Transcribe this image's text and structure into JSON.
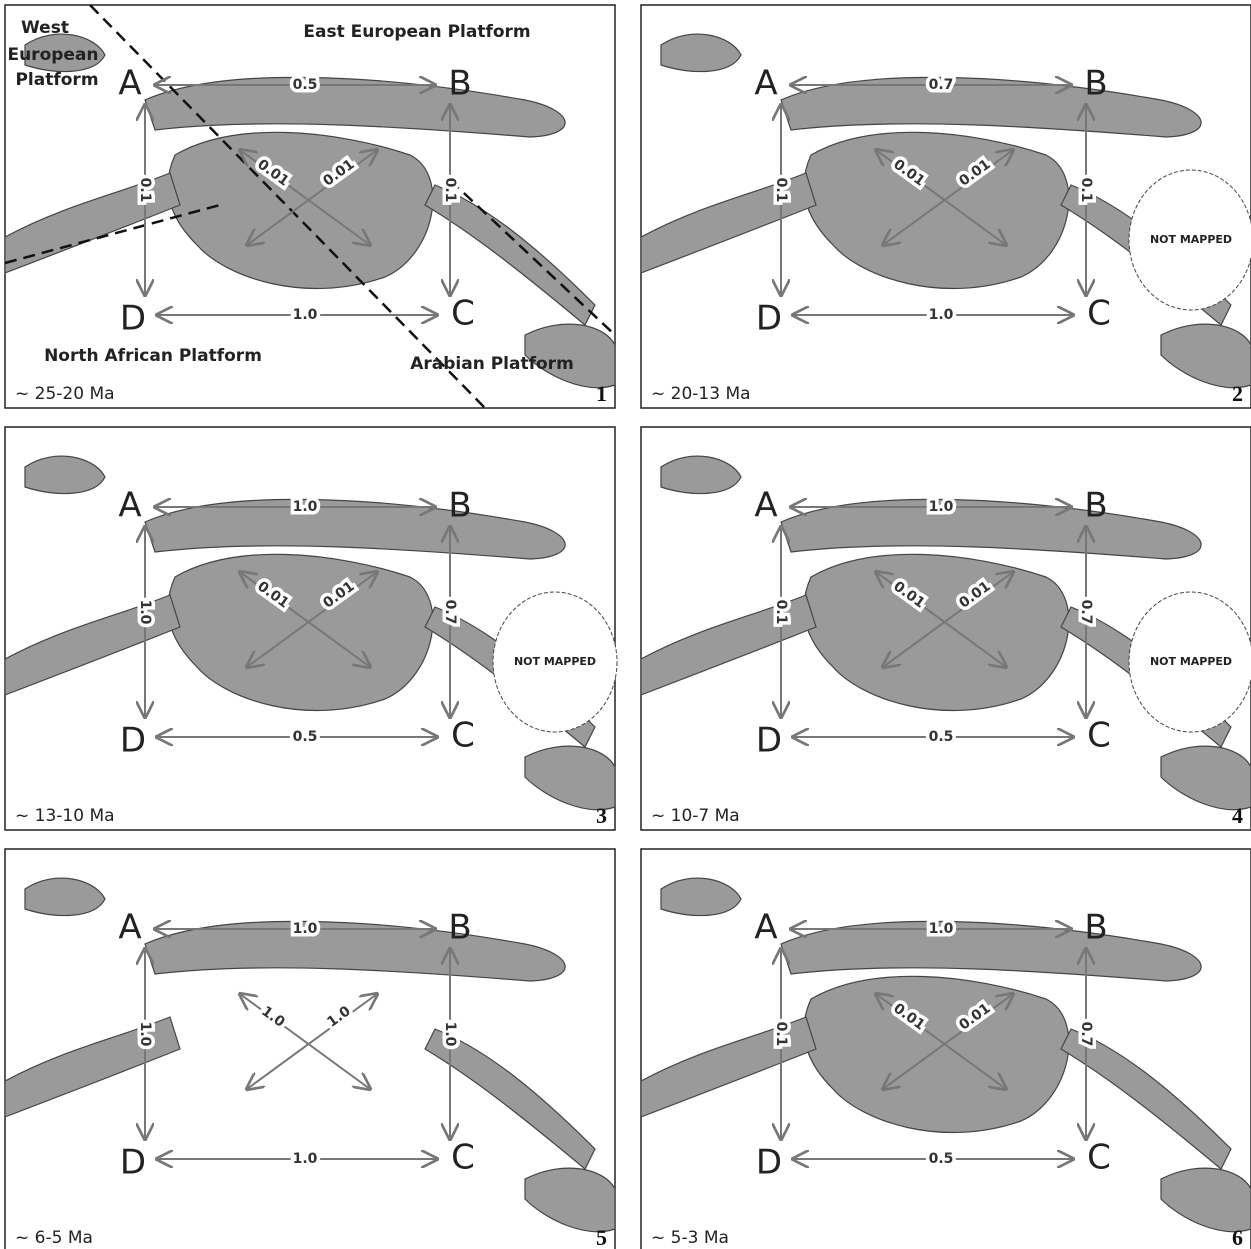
{
  "panels": [
    {
      "period": "~ 25-20 Ma",
      "number": "1",
      "nodes": [
        "A",
        "B",
        "C",
        "D"
      ],
      "edges": {
        "ab": "0.5",
        "ad": "0.1",
        "bc": "0.1",
        "dc": "1.0",
        "diag_1": "0.01",
        "diag_2": "0.01"
      },
      "regions": {
        "west": [
          "West",
          "European",
          "Platform"
        ],
        "east": "East European Platform",
        "north_africa": "North African Platform",
        "arabia": "Arabian Platform"
      }
    },
    {
      "period": "~ 20-13 Ma",
      "number": "2",
      "nodes": [
        "A",
        "B",
        "C",
        "D"
      ],
      "edges": {
        "ab": "0.7",
        "ad": "0.1",
        "bc": "0.1",
        "dc": "1.0",
        "diag_1": "0.01",
        "diag_2": "0.01"
      },
      "not_mapped": "NOT MAPPED"
    },
    {
      "period": "~ 13-10 Ma",
      "number": "3",
      "nodes": [
        "A",
        "B",
        "C",
        "D"
      ],
      "edges": {
        "ab": "1.0",
        "ad": "1.0",
        "bc": "0.7",
        "dc": "0.5",
        "diag_1": "0.01",
        "diag_2": "0.01"
      },
      "not_mapped": "NOT MAPPED"
    },
    {
      "period": "~ 10-7 Ma",
      "number": "4",
      "nodes": [
        "A",
        "B",
        "C",
        "D"
      ],
      "edges": {
        "ab": "1.0",
        "ad": "0.1",
        "bc": "0.7",
        "dc": "0.5",
        "diag_1": "0.01",
        "diag_2": "0.01"
      },
      "not_mapped": "NOT MAPPED"
    },
    {
      "period": "~ 6-5 Ma",
      "number": "5",
      "nodes": [
        "A",
        "B",
        "C",
        "D"
      ],
      "edges": {
        "ab": "1.0",
        "ad": "1.0",
        "bc": "1.0",
        "dc": "1.0",
        "diag_1": "1.0",
        "diag_2": "1.0"
      }
    },
    {
      "period": "~ 5-3 Ma",
      "number": "6",
      "nodes": [
        "A",
        "B",
        "C",
        "D"
      ],
      "edges": {
        "ab": "1.0",
        "ad": "0.1",
        "bc": "0.7",
        "dc": "0.5",
        "diag_1": "0.01",
        "diag_2": "0.01"
      }
    }
  ]
}
